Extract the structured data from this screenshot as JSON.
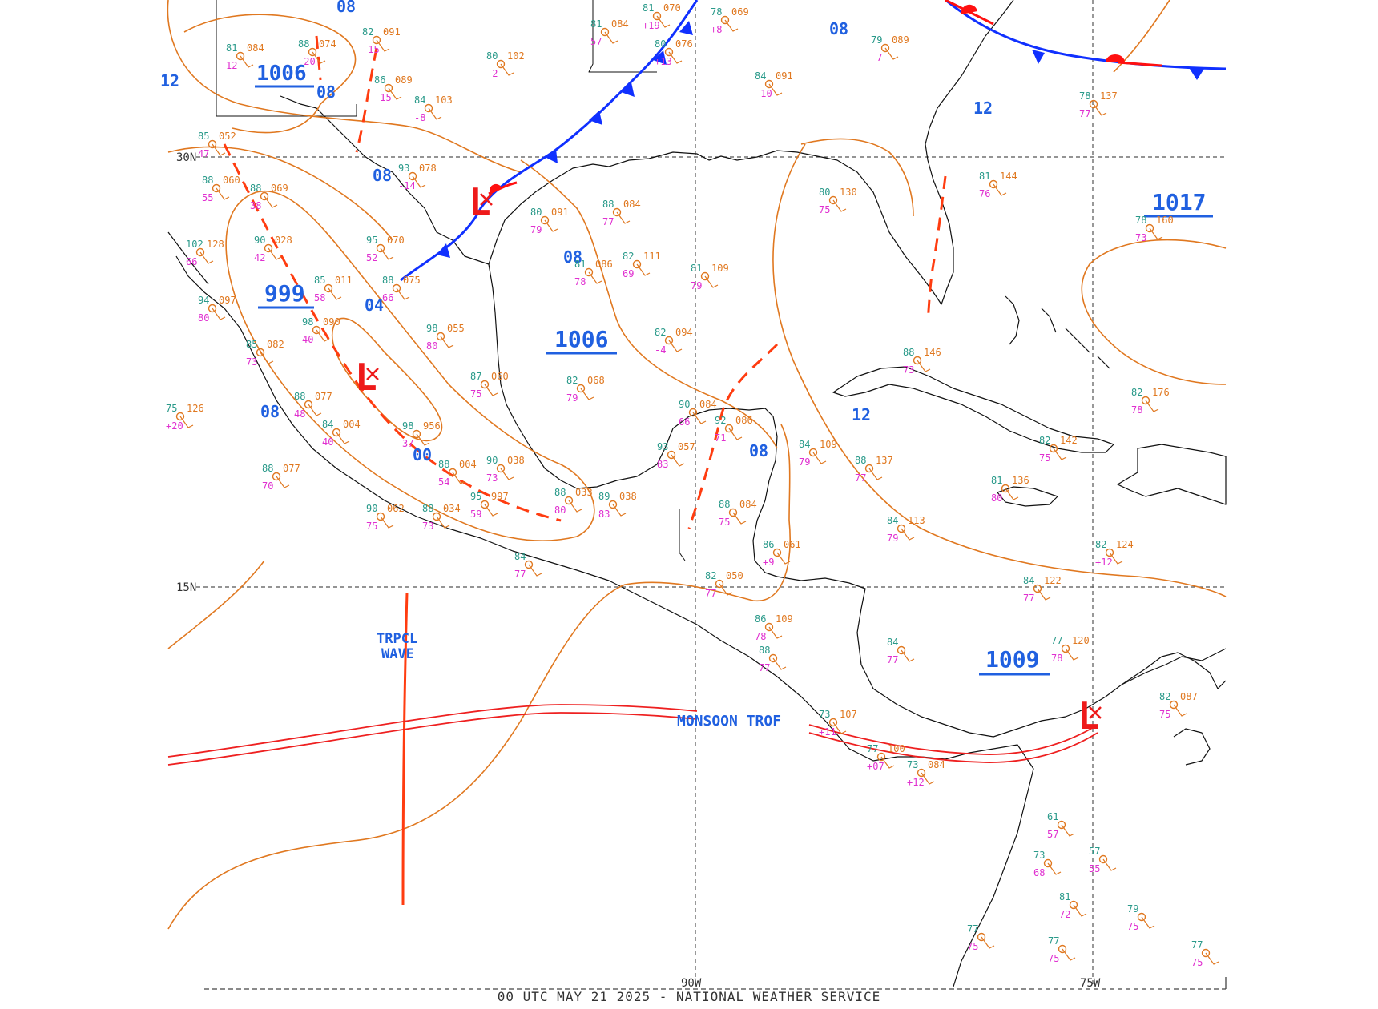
{
  "title": "00 UTC MAY 21 2025 - NATIONAL WEATHER SERVICE",
  "colors": {
    "isobar": "#e07820",
    "coast": "#111111",
    "cold_front": "#1030ff",
    "warm_front": "#ff1010",
    "trough": "#ff3c10",
    "pressure_label": "#2060e0",
    "low": "#ee1a1a",
    "obs_temp": "#e07820",
    "obs_dew": "#e030d0",
    "obs_press": "#e07820",
    "obs_other": "#2a9a8a"
  },
  "grid_labels": {
    "lat30": "30N",
    "lat15": "15N",
    "lon90": "90W",
    "lon75": "75W"
  },
  "pressure_centers": [
    {
      "id": "p1006a",
      "text": "1006",
      "underline": true
    },
    {
      "id": "p999",
      "text": "999",
      "underline": true
    },
    {
      "id": "p1006b",
      "text": "1006",
      "underline": true
    },
    {
      "id": "p1017",
      "text": "1017",
      "underline": true
    },
    {
      "id": "p1009",
      "text": "1009",
      "underline": true
    }
  ],
  "isobar_labels": [
    "08",
    "08",
    "08",
    "08",
    "04",
    "08",
    "00",
    "08",
    "08",
    "12",
    "12",
    "12",
    "08",
    "08"
  ],
  "lows": [
    "L",
    "L",
    "L"
  ],
  "features": {
    "tropical_wave": [
      "TRPCL",
      "WAVE"
    ],
    "monsoon": "MONSOON TROF"
  },
  "stations": [
    {
      "t": "81",
      "p": "084",
      "d": "12"
    },
    {
      "t": "88",
      "p": "074",
      "d": "-20"
    },
    {
      "t": "82",
      "p": "091",
      "d": "-15"
    },
    {
      "t": "86",
      "p": "089",
      "d": "-15"
    },
    {
      "t": "84",
      "p": "103",
      "d": "-8"
    },
    {
      "t": "80",
      "p": "102",
      "d": "-2"
    },
    {
      "t": "81",
      "p": "084",
      "d": "57"
    },
    {
      "t": "81",
      "p": "070",
      "d": "+19"
    },
    {
      "t": "78",
      "p": "069",
      "d": "+8"
    },
    {
      "t": "80",
      "p": "076",
      "d": "+13"
    },
    {
      "t": "84",
      "p": "091",
      "d": "-10"
    },
    {
      "t": "79",
      "p": "089",
      "d": "-7"
    },
    {
      "t": "78",
      "p": "137",
      "d": "77"
    },
    {
      "t": "85",
      "p": "052",
      "d": "47"
    },
    {
      "t": "88",
      "p": "060",
      "d": "55"
    },
    {
      "t": "88",
      "p": "069",
      "d": "38"
    },
    {
      "t": "93",
      "p": "078",
      "d": "-14"
    },
    {
      "t": "95",
      "p": "070",
      "d": "52"
    },
    {
      "t": "80",
      "p": "091",
      "d": "79"
    },
    {
      "t": "88",
      "p": "084",
      "d": "77"
    },
    {
      "t": "81",
      "p": "086",
      "d": "78"
    },
    {
      "t": "82",
      "p": "111",
      "d": "69"
    },
    {
      "t": "81",
      "p": "109",
      "d": "79"
    },
    {
      "t": "102",
      "p": "128",
      "d": "66"
    },
    {
      "t": "90",
      "p": "028",
      "d": "42"
    },
    {
      "t": "85",
      "p": "011",
      "d": "58"
    },
    {
      "t": "88",
      "p": "075",
      "d": "66"
    },
    {
      "t": "98",
      "p": "055",
      "d": "80"
    },
    {
      "t": "87",
      "p": "060",
      "d": "75"
    },
    {
      "t": "82",
      "p": "068",
      "d": "79"
    },
    {
      "t": "82",
      "p": "094",
      "d": "-4"
    },
    {
      "t": "80",
      "p": "130",
      "d": "75"
    },
    {
      "t": "81",
      "p": "144",
      "d": "76"
    },
    {
      "t": "78",
      "p": "160",
      "d": "73"
    },
    {
      "t": "94",
      "p": "097",
      "d": "80"
    },
    {
      "t": "85",
      "p": "082",
      "d": "73"
    },
    {
      "t": "75",
      "p": "126",
      "d": "+20"
    },
    {
      "t": "98",
      "p": "090",
      "d": "40"
    },
    {
      "t": "88",
      "p": "077",
      "d": "48"
    },
    {
      "t": "84",
      "p": "004",
      "d": "40"
    },
    {
      "t": "98",
      "p": "956",
      "d": "37"
    },
    {
      "t": "88",
      "p": "004",
      "d": "54"
    },
    {
      "t": "90",
      "p": "038",
      "d": "73"
    },
    {
      "t": "88",
      "p": "077",
      "d": "70"
    },
    {
      "t": "90",
      "p": "062",
      "d": "75"
    },
    {
      "t": "88",
      "p": "034",
      "d": "73"
    },
    {
      "t": "95",
      "p": "997",
      "d": "59"
    },
    {
      "t": "88",
      "p": "033",
      "d": "80"
    },
    {
      "t": "89",
      "p": "038",
      "d": "83"
    },
    {
      "t": "84",
      "p": "",
      "d": "77"
    },
    {
      "t": "90",
      "p": "084",
      "d": "66"
    },
    {
      "t": "92",
      "p": "086",
      "d": "71"
    },
    {
      "t": "93",
      "p": "057",
      "d": "83"
    },
    {
      "t": "84",
      "p": "109",
      "d": "79"
    },
    {
      "t": "88",
      "p": "146",
      "d": "73"
    },
    {
      "t": "82",
      "p": "176",
      "d": "78"
    },
    {
      "t": "88",
      "p": "137",
      "d": "77"
    },
    {
      "t": "82",
      "p": "142",
      "d": "75"
    },
    {
      "t": "81",
      "p": "136",
      "d": "80"
    },
    {
      "t": "84",
      "p": "113",
      "d": "79"
    },
    {
      "t": "82",
      "p": "124",
      "d": "+12"
    },
    {
      "t": "84",
      "p": "122",
      "d": "77"
    },
    {
      "t": "77",
      "p": "120",
      "d": "78"
    },
    {
      "t": "88",
      "p": "084",
      "d": "75"
    },
    {
      "t": "86",
      "p": "061",
      "d": "+9"
    },
    {
      "t": "82",
      "p": "050",
      "d": "77"
    },
    {
      "t": "86",
      "p": "109",
      "d": "78"
    },
    {
      "t": "73",
      "p": "107",
      "d": "+11"
    },
    {
      "t": "77",
      "p": "100",
      "d": "+07"
    },
    {
      "t": "73",
      "p": "084",
      "d": "+12"
    },
    {
      "t": "82",
      "p": "087",
      "d": "75"
    },
    {
      "t": "84",
      "p": "",
      "d": "77"
    },
    {
      "t": "88",
      "p": "",
      "d": "77"
    },
    {
      "t": "61",
      "p": "",
      "d": "57"
    },
    {
      "t": "73",
      "p": "",
      "d": "68"
    },
    {
      "t": "57",
      "p": "",
      "d": "55"
    },
    {
      "t": "81",
      "p": "",
      "d": "72"
    },
    {
      "t": "77",
      "p": "",
      "d": "75"
    },
    {
      "t": "79",
      "p": "",
      "d": "75"
    },
    {
      "t": "77",
      "p": "",
      "d": "75"
    },
    {
      "t": "77",
      "p": "",
      "d": "75"
    }
  ]
}
